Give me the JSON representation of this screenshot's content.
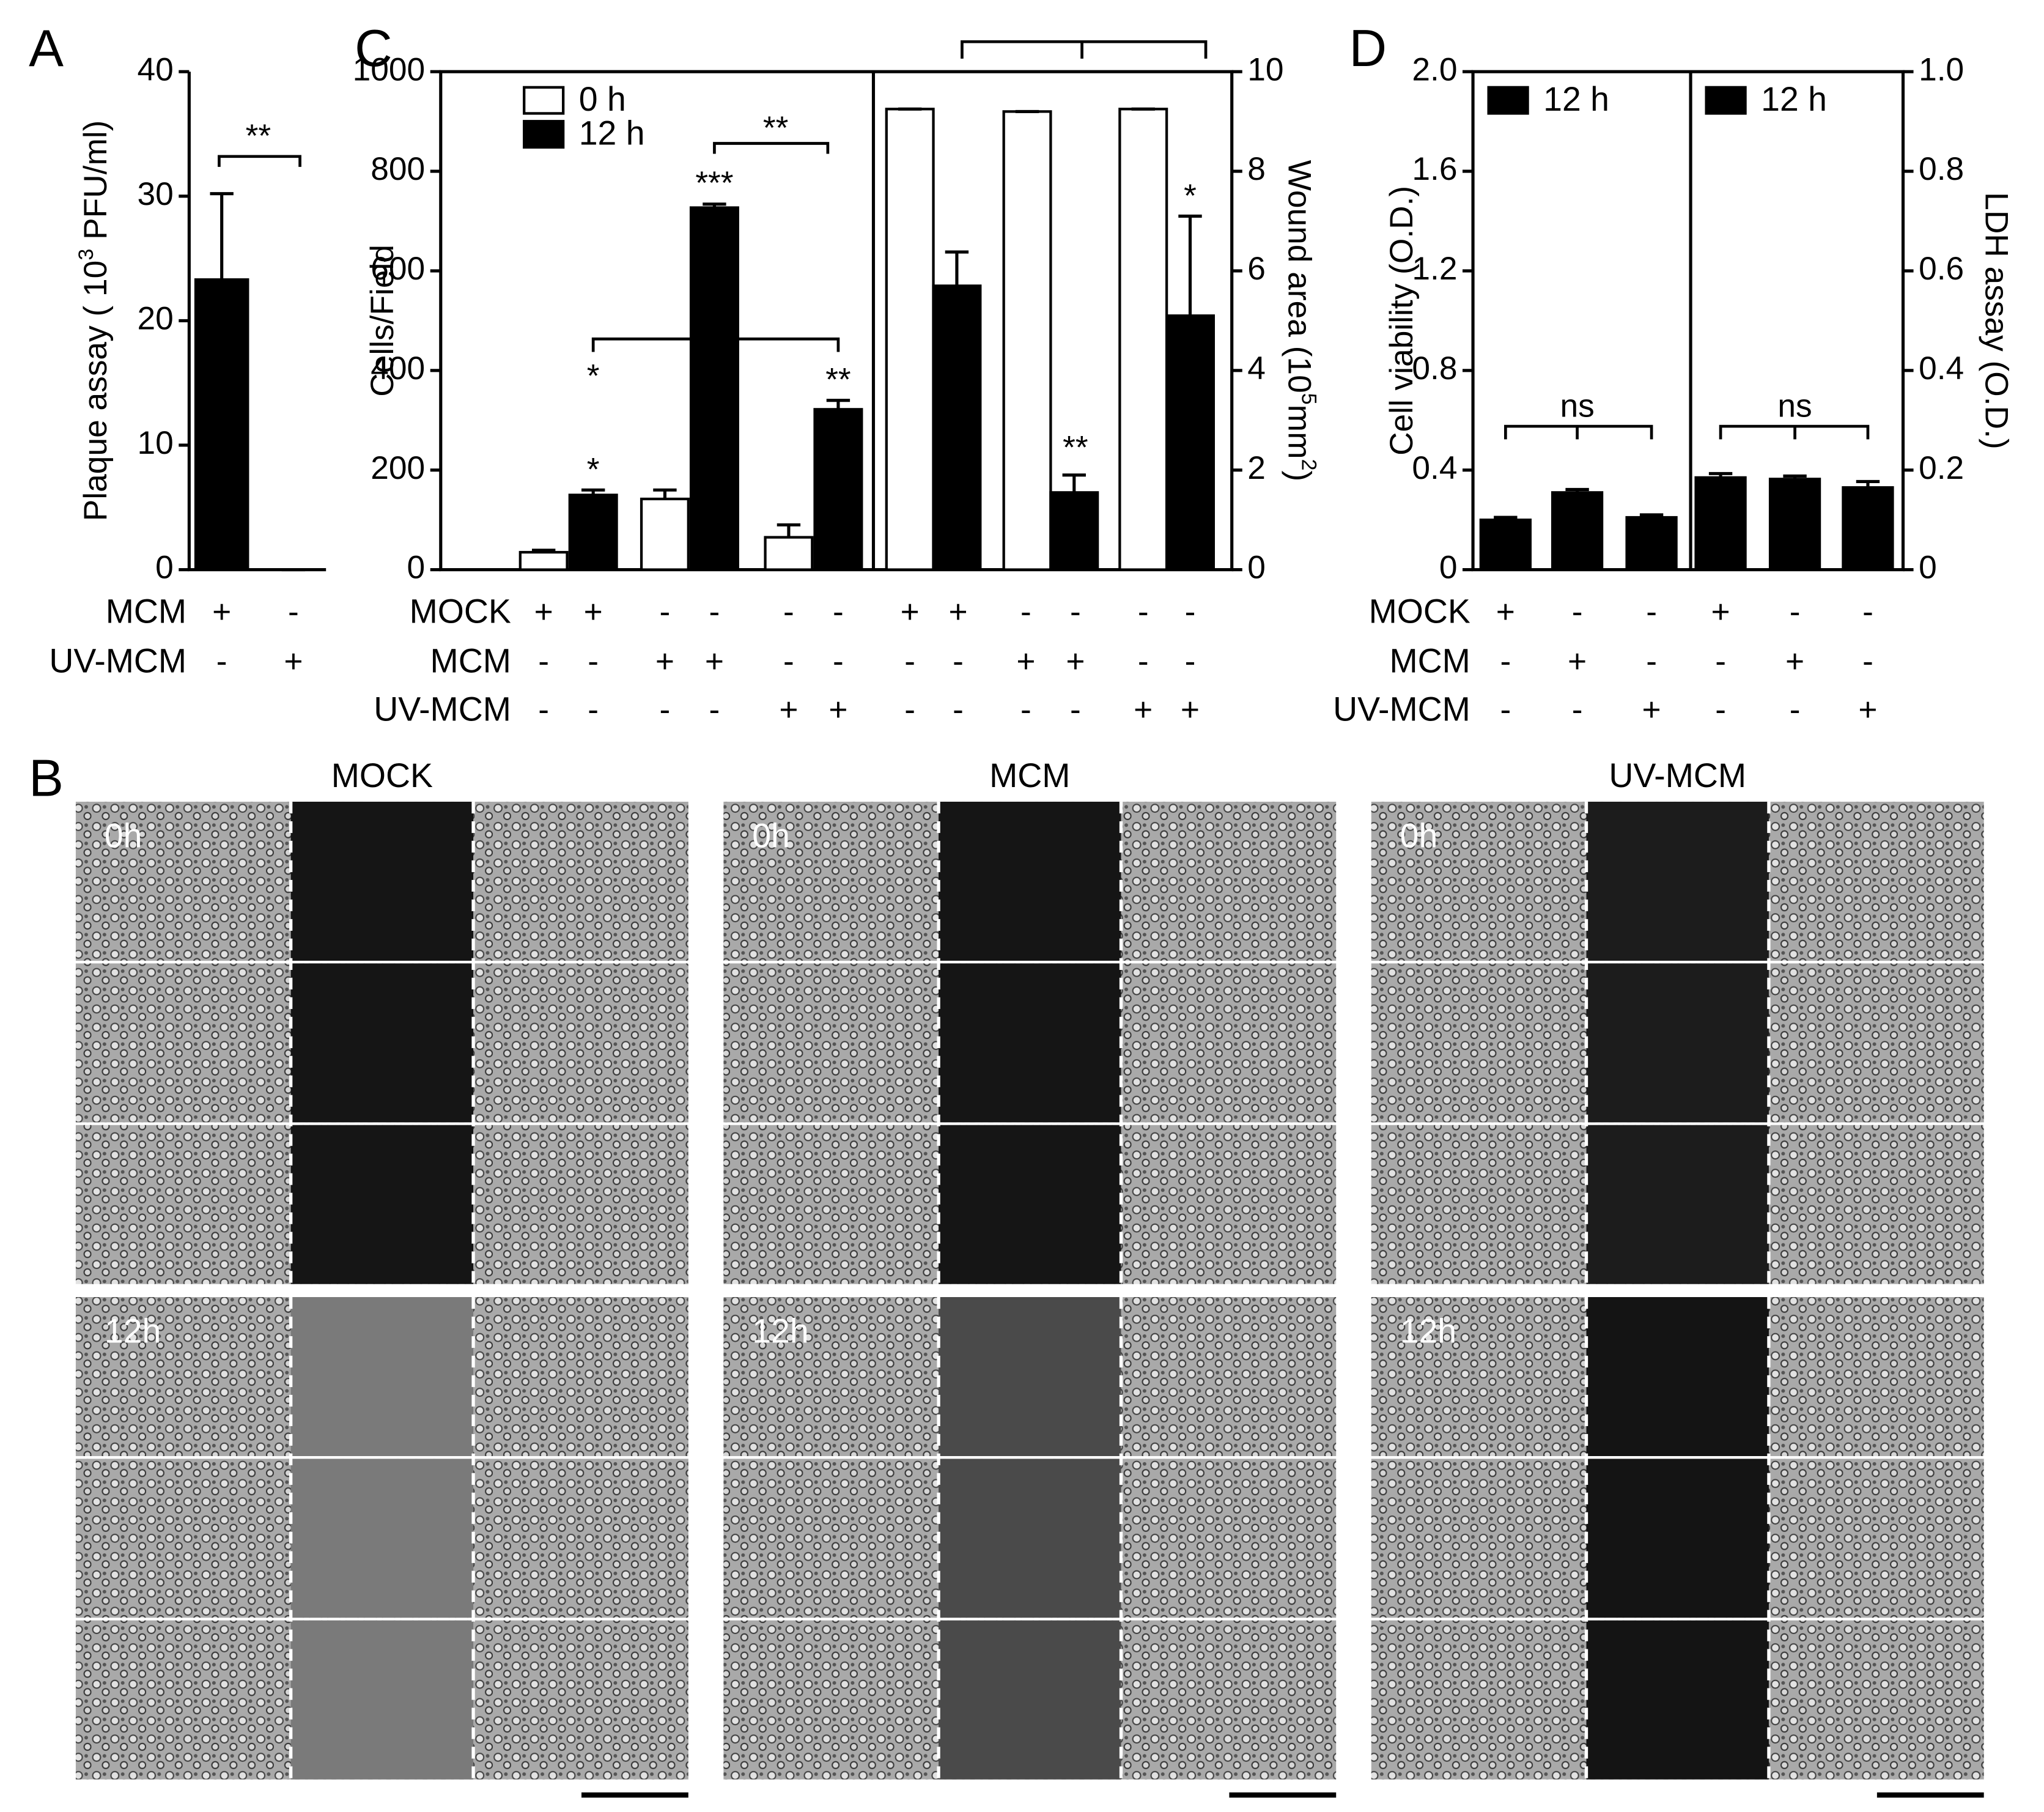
{
  "panel_labels": [
    "A",
    "C",
    "D",
    "B"
  ],
  "chart_data": [
    {
      "type": "bar",
      "ylabel": [
        "Plaque assay ( 10",
        "3",
        " PFU/ml)"
      ],
      "ylim": [
        0,
        40
      ],
      "yticks": [
        0,
        10,
        20,
        30,
        40
      ],
      "series": [
        {
          "color": "#000000",
          "values": [
            23.3,
            0
          ],
          "errors": [
            6.9,
            0
          ]
        }
      ],
      "annotations": [
        "**"
      ]
    },
    {
      "type": "bar",
      "ylabel": [
        "Cells/Field"
      ],
      "ylim": [
        0,
        1000
      ],
      "yticks": [
        0,
        200,
        400,
        600,
        800,
        1000
      ],
      "legend": "top-left",
      "series": [
        {
          "name": "0 h",
          "color": "#ffffff",
          "values": [
            35,
            142,
            65
          ],
          "errors": [
            4,
            18,
            25
          ]
        },
        {
          "name": "12 h",
          "color": "#000000",
          "values": [
            150,
            727,
            322
          ],
          "errors": [
            10,
            7,
            18
          ]
        }
      ],
      "annotations": [
        "*",
        "*",
        "***",
        "**",
        "**"
      ]
    },
    {
      "type": "bar",
      "ylabel": [
        "Wound area (10",
        "5",
        "mm",
        "2",
        ")"
      ],
      "y2lim": [
        0,
        10
      ],
      "y2ticks": [
        0,
        2,
        4,
        6,
        8,
        10
      ],
      "series": [
        {
          "color": "#ffffff",
          "axis": "y2",
          "values": [
            9.25,
            9.2,
            9.25
          ],
          "errors": [
            0,
            0,
            0
          ]
        },
        {
          "color": "#000000",
          "axis": "y2",
          "values": [
            5.7,
            1.55,
            5.1
          ],
          "errors": [
            0.68,
            0.35,
            2.0
          ]
        }
      ],
      "annotations": [
        "**",
        "*"
      ]
    },
    {
      "type": "bar",
      "ylabel": [
        "Cell viability (O.D.)"
      ],
      "ylim": [
        0,
        2
      ],
      "yticks": [
        0,
        0.4,
        0.8,
        1.2,
        1.6,
        {
          "value": 2,
          "label": "2.0"
        }
      ],
      "legend": "top-left",
      "series": [
        {
          "name": "12 h",
          "color": "#000000",
          "values": [
            0.2,
            0.31,
            0.21
          ],
          "errors": [
            0.01,
            0.012,
            0.01
          ]
        }
      ],
      "annotations": [
        "ns"
      ]
    },
    {
      "type": "bar",
      "ylabel": [
        "LDH assay (O.D.)"
      ],
      "y2lim": [
        0,
        1
      ],
      "y2ticks": [
        0,
        0.2,
        0.4,
        0.6,
        0.8,
        {
          "value": 1,
          "label": "1.0"
        }
      ],
      "legend": "top-left",
      "series": [
        {
          "name": "12 h",
          "color": "#000000",
          "axis": "y2",
          "values": [
            0.185,
            0.182,
            0.165
          ],
          "errors": [
            0.008,
            0.006,
            0.012
          ]
        }
      ],
      "annotations": [
        "ns"
      ]
    }
  ],
  "condition_tables": [
    {
      "rows": [
        {
          "label": "MCM",
          "marks": [
            "+",
            "-"
          ]
        },
        {
          "label": "UV-MCM",
          "marks": [
            "-",
            "+"
          ]
        }
      ]
    },
    {
      "rows": [
        {
          "label": "MOCK",
          "marks": [
            "+",
            "+",
            "-",
            "-",
            "-",
            "-",
            "+",
            "+",
            "-",
            "-",
            "-",
            "-"
          ]
        },
        {
          "label": "MCM",
          "marks": [
            "-",
            "-",
            "+",
            "+",
            "-",
            "-",
            "-",
            "-",
            "+",
            "+",
            "-",
            "-"
          ]
        },
        {
          "label": "UV-MCM",
          "marks": [
            "-",
            "-",
            "-",
            "-",
            "+",
            "+",
            "-",
            "-",
            "-",
            "-",
            "+",
            "+"
          ]
        }
      ]
    },
    {
      "rows": [
        {
          "label": "MOCK",
          "marks": [
            "+",
            "-",
            "-",
            "+",
            "-",
            "-"
          ]
        },
        {
          "label": "MCM",
          "marks": [
            "-",
            "+",
            "-",
            "-",
            "+",
            "-"
          ]
        },
        {
          "label": "UV-MCM",
          "marks": [
            "-",
            "-",
            "+",
            "-",
            "-",
            "+"
          ]
        }
      ]
    }
  ],
  "micrographs": [
    {
      "title": "MOCK",
      "times": [
        "0h",
        "12h"
      ]
    },
    {
      "title": "MCM",
      "times": [
        "0h",
        "12h"
      ]
    },
    {
      "title": "UV-MCM",
      "times": [
        "0h",
        "12h"
      ]
    }
  ]
}
